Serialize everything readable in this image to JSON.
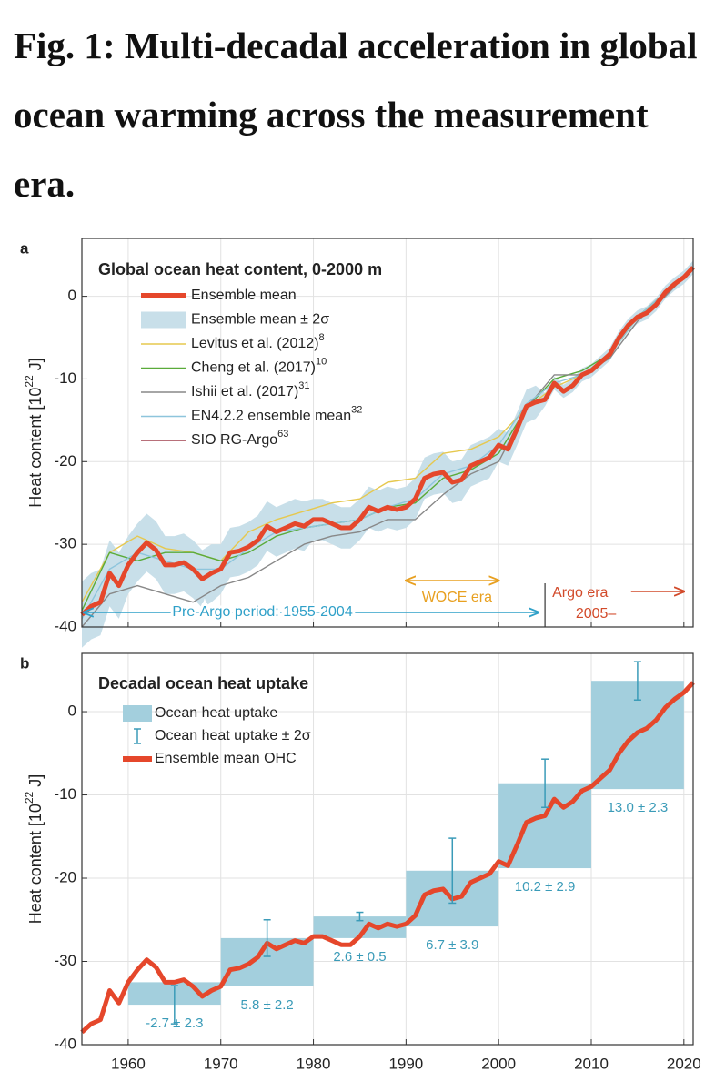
{
  "title": "Fig. 1: Multi-decadal acceleration in global ocean warming across the measurement era.",
  "chart_data": [
    {
      "type": "line",
      "panel_label": "a",
      "title": "Global ocean heat content, 0-2000 m",
      "ylabel_parts": [
        "Heat content [10",
        "22",
        " J]"
      ],
      "xlim": [
        1955,
        2021
      ],
      "ylim": [
        -40,
        7
      ],
      "yticks": [
        -40,
        -30,
        -20,
        -10,
        0
      ],
      "grid": true,
      "x": [
        1955,
        1956,
        1957,
        1958,
        1959,
        1960,
        1961,
        1962,
        1963,
        1964,
        1965,
        1966,
        1967,
        1968,
        1969,
        1970,
        1971,
        1972,
        1973,
        1974,
        1975,
        1976,
        1977,
        1978,
        1979,
        1980,
        1981,
        1982,
        1983,
        1984,
        1985,
        1986,
        1987,
        1988,
        1989,
        1990,
        1991,
        1992,
        1993,
        1994,
        1995,
        1996,
        1997,
        1998,
        1999,
        2000,
        2001,
        2002,
        2003,
        2004,
        2005,
        2006,
        2007,
        2008,
        2009,
        2010,
        2011,
        2012,
        2013,
        2014,
        2015,
        2016,
        2017,
        2018,
        2019,
        2020,
        2021
      ],
      "series": [
        {
          "name": "Ensemble mean",
          "color": "#e5472b",
          "values": [
            -38.5,
            -37.5,
            -37,
            -33.5,
            -35,
            -32.5,
            -31,
            -29.8,
            -30.7,
            -32.5,
            -32.5,
            -32.2,
            -33,
            -34.2,
            -33.5,
            -33,
            -31,
            -30.8,
            -30.3,
            -29.5,
            -27.8,
            -28.5,
            -28,
            -27.5,
            -27.8,
            -27,
            -27,
            -27.5,
            -28,
            -28,
            -27,
            -25.5,
            -26,
            -25.5,
            -25.8,
            -25.5,
            -24.5,
            -22,
            -21.5,
            -21.3,
            -22.5,
            -22.2,
            -20.5,
            -20,
            -19.5,
            -18,
            -18.5,
            -16,
            -13.3,
            -12.8,
            -12.5,
            -10.5,
            -11.5,
            -10.8,
            -9.5,
            -9,
            -8,
            -7,
            -5,
            -3.5,
            -2.5,
            -2,
            -1,
            0.5,
            1.5,
            2.3,
            3.5
          ]
        },
        {
          "name": "Ensemble mean ± 2σ",
          "color": "#c8dfe9",
          "errors": [
            4,
            4,
            4,
            4,
            4,
            3.5,
            3.5,
            3.5,
            3.5,
            3.5,
            3.5,
            3.5,
            3.5,
            3.5,
            3.5,
            3,
            3,
            3,
            3,
            3,
            3,
            3,
            3,
            3,
            3,
            2.5,
            2.5,
            2.5,
            2.5,
            2.5,
            2.5,
            2.5,
            2.5,
            2.5,
            2.5,
            2.5,
            2.5,
            2.5,
            2.5,
            2.5,
            2.5,
            2.5,
            2.5,
            2.5,
            2.5,
            2,
            2,
            2,
            2,
            2,
            0.8,
            0.8,
            0.8,
            0.8,
            0.8,
            0.8,
            0.8,
            0.8,
            0.8,
            0.8,
            0.8,
            0.8,
            0.8,
            0.8,
            0.8,
            0.8,
            0.8
          ]
        },
        {
          "name": "Levitus et al. (2012)",
          "ref": "8",
          "color": "#e6c84e",
          "x": [
            1955,
            1958,
            1961,
            1964,
            1967,
            1970,
            1973,
            1976,
            1979,
            1982,
            1985,
            1988,
            1991,
            1994,
            1997,
            2000,
            2003,
            2006,
            2009,
            2012,
            2015,
            2018,
            2021
          ],
          "values": [
            -37,
            -31,
            -29,
            -30.5,
            -31,
            -32,
            -28.5,
            -27,
            -26,
            -25,
            -24.5,
            -22.5,
            -22,
            -19,
            -18.5,
            -17,
            -13.5,
            -11,
            -9.5,
            -7,
            -2.5,
            0.5,
            3.5
          ]
        },
        {
          "name": "Cheng et al. (2017)",
          "ref": "10",
          "color": "#5aab3a",
          "x": [
            1955,
            1958,
            1961,
            1964,
            1967,
            1970,
            1973,
            1976,
            1979,
            1982,
            1985,
            1988,
            1991,
            1994,
            1997,
            2000,
            2003,
            2006,
            2009,
            2012,
            2015,
            2018,
            2021
          ],
          "values": [
            -38,
            -31,
            -32,
            -31,
            -31,
            -32,
            -31,
            -29,
            -28,
            -27.5,
            -27,
            -25.5,
            -25,
            -22,
            -21,
            -19,
            -13.5,
            -10,
            -9,
            -7,
            -2.5,
            0.5,
            3.5
          ]
        },
        {
          "name": "Ishii et al. (2017)",
          "ref": "31",
          "color": "#888888",
          "x": [
            1955,
            1958,
            1961,
            1964,
            1967,
            1970,
            1973,
            1976,
            1979,
            1982,
            1985,
            1988,
            1991,
            1994,
            1997,
            2000,
            2003,
            2006,
            2009,
            2012,
            2015,
            2018,
            2021
          ],
          "values": [
            -40,
            -36,
            -35,
            -36,
            -37,
            -35,
            -34,
            -32,
            -30,
            -29,
            -28.5,
            -27,
            -27,
            -24,
            -21.5,
            -20,
            -13.5,
            -9.5,
            -9.5,
            -7.5,
            -3,
            0,
            3.5
          ]
        },
        {
          "name": "EN4.2.2 ensemble mean",
          "ref": "32",
          "color": "#8ec5dc",
          "x": [
            1955,
            1958,
            1961,
            1964,
            1967,
            1970,
            1973,
            1976,
            1979,
            1982,
            1985,
            1988,
            1991,
            1994,
            1997,
            2000,
            2003,
            2006,
            2009,
            2012,
            2015,
            2018,
            2021
          ],
          "values": [
            -39,
            -33,
            -31,
            -32,
            -33,
            -33,
            -30.5,
            -28.5,
            -28,
            -27.5,
            -27,
            -25.5,
            -24.5,
            -21.5,
            -20.5,
            -18,
            -13,
            -10.5,
            -9.5,
            -7,
            -2.5,
            0.5,
            3.5
          ]
        },
        {
          "name": "SIO RG-Argo",
          "ref": "63",
          "color": "#a0404e",
          "x": [
            2005,
            2006,
            2007,
            2008,
            2009,
            2010,
            2011,
            2012,
            2013,
            2014,
            2015,
            2016,
            2017,
            2018,
            2019,
            2020,
            2021
          ],
          "values": [
            -12.3,
            -10.6,
            -11.4,
            -10.7,
            -9.6,
            -9,
            -8,
            -7,
            -5,
            -3.6,
            -2.4,
            -2,
            -1,
            0.6,
            1.5,
            2.4,
            3.5
          ]
        }
      ],
      "annotations": [
        "WOCE era",
        "Argo era",
        "2005–",
        "Pre-Argo period: 1955-2004"
      ]
    },
    {
      "type": "bar",
      "panel_label": "b",
      "title": "Decadal ocean heat uptake",
      "ylabel_parts": [
        "Heat content [10",
        "22",
        " J]"
      ],
      "xlim": [
        1955,
        2021
      ],
      "xticks": [
        1960,
        1970,
        1980,
        1990,
        2000,
        2010,
        2020
      ],
      "ylim": [
        -40,
        7
      ],
      "yticks": [
        -40,
        -30,
        -20,
        -10,
        0
      ],
      "grid": true,
      "series": [
        {
          "name": "Ocean heat uptake",
          "color": "#a3cfdd",
          "bins": [
            1960,
            1970,
            1980,
            1990,
            2000,
            2010,
            2020
          ],
          "starts": [
            -32.5,
            -33,
            -27.2,
            -25.8,
            -18.8,
            -9.3
          ],
          "values": [
            -2.7,
            5.8,
            2.6,
            6.7,
            10.2,
            13.0
          ],
          "value_labels": [
            "-2.7 ± 2.3",
            "5.8 ± 2.2",
            "2.6 ± 0.5",
            "6.7 ± 3.9",
            "10.2 ± 2.9",
            "13.0 ± 2.3"
          ]
        },
        {
          "name": "Ocean heat uptake ± 2σ",
          "color": "#3a9bb8",
          "errors": [
            2.3,
            2.2,
            0.5,
            3.9,
            2.9,
            2.3
          ]
        },
        {
          "name": "Ensemble mean OHC",
          "color": "#e5472b"
        }
      ]
    }
  ]
}
